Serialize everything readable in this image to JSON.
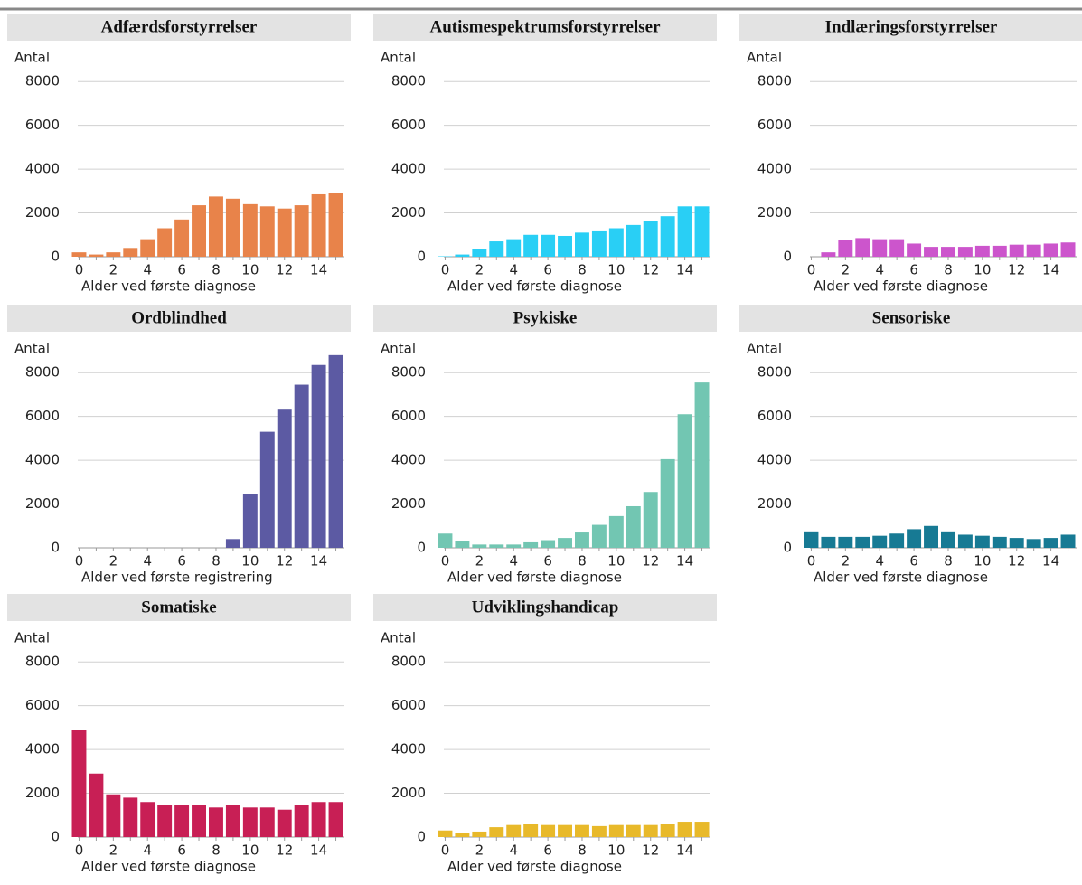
{
  "chart_data": [
    {
      "type": "bar",
      "title": "Adfærdsforstyrrelser",
      "y_label": "Antal",
      "x_label": "Alder ved første diagnose",
      "categories": [
        "0",
        null,
        "2",
        null,
        "4",
        null,
        "6",
        null,
        "8",
        null,
        "10",
        null,
        "12",
        null,
        "14",
        null
      ],
      "values": [
        200,
        100,
        200,
        400,
        800,
        1300,
        1700,
        2350,
        2750,
        2650,
        2400,
        2300,
        2200,
        2350,
        2850,
        2900
      ],
      "color": "#e8834a",
      "ylim": [
        0,
        9000
      ],
      "yticks": [
        0,
        2000,
        4000,
        6000,
        8000
      ],
      "grid": true
    },
    {
      "type": "bar",
      "title": "Autismespektrumsforstyrrelser",
      "y_label": "Antal",
      "x_label": "Alder ved første diagnose",
      "categories": [
        "0",
        null,
        "2",
        null,
        "4",
        null,
        "6",
        null,
        "8",
        null,
        "10",
        null,
        "12",
        null,
        "14",
        null
      ],
      "values": [
        20,
        100,
        350,
        700,
        800,
        1000,
        1000,
        950,
        1100,
        1200,
        1300,
        1450,
        1650,
        1850,
        2300,
        2300
      ],
      "color": "#29cff5",
      "ylim": [
        0,
        9000
      ],
      "yticks": [
        0,
        2000,
        4000,
        6000,
        8000
      ],
      "grid": true
    },
    {
      "type": "bar",
      "title": "Indlæringsforstyrrelser",
      "y_label": "Antal",
      "x_label": "Alder ved første diagnose",
      "categories": [
        "0",
        null,
        "2",
        null,
        "4",
        null,
        "6",
        null,
        "8",
        null,
        "10",
        null,
        "12",
        null,
        "14",
        null
      ],
      "values": [
        0,
        200,
        750,
        850,
        800,
        800,
        600,
        450,
        450,
        450,
        500,
        500,
        550,
        550,
        600,
        650
      ],
      "color": "#cc55cc",
      "ylim": [
        0,
        9000
      ],
      "yticks": [
        0,
        2000,
        4000,
        6000,
        8000
      ],
      "grid": true
    },
    {
      "type": "bar",
      "title": "Ordblindhed",
      "y_label": "Antal",
      "x_label": "Alder ved første registrering",
      "categories": [
        "0",
        null,
        "2",
        null,
        "4",
        null,
        "6",
        null,
        "8",
        null,
        "10",
        null,
        "12",
        null,
        "14",
        null
      ],
      "values": [
        0,
        0,
        0,
        0,
        0,
        0,
        0,
        0,
        0,
        400,
        2450,
        5300,
        6350,
        7450,
        8350,
        8800
      ],
      "color": "#5c5aa3",
      "ylim": [
        0,
        9000
      ],
      "yticks": [
        0,
        2000,
        4000,
        6000,
        8000
      ],
      "grid": true
    },
    {
      "type": "bar",
      "title": "Psykiske",
      "y_label": "Antal",
      "x_label": "Alder ved første diagnose",
      "categories": [
        "0",
        null,
        "2",
        null,
        "4",
        null,
        "6",
        null,
        "8",
        null,
        "10",
        null,
        "12",
        null,
        "14",
        null
      ],
      "values": [
        650,
        300,
        150,
        150,
        150,
        250,
        350,
        450,
        700,
        1050,
        1450,
        1900,
        2550,
        4050,
        6100,
        7550
      ],
      "color": "#72c6b2",
      "ylim": [
        0,
        9000
      ],
      "yticks": [
        0,
        2000,
        4000,
        6000,
        8000
      ],
      "grid": true
    },
    {
      "type": "bar",
      "title": "Sensoriske",
      "y_label": "Antal",
      "x_label": "Alder ved første diagnose",
      "categories": [
        "0",
        null,
        "2",
        null,
        "4",
        null,
        "6",
        null,
        "8",
        null,
        "10",
        null,
        "12",
        null,
        "14",
        null
      ],
      "values": [
        750,
        500,
        500,
        500,
        550,
        650,
        850,
        1000,
        750,
        600,
        550,
        500,
        450,
        400,
        450,
        600
      ],
      "color": "#177a94",
      "ylim": [
        0,
        9000
      ],
      "yticks": [
        0,
        2000,
        4000,
        6000,
        8000
      ],
      "grid": true
    },
    {
      "type": "bar",
      "title": "Somatiske",
      "y_label": "Antal",
      "x_label": "Alder ved første diagnose",
      "categories": [
        "0",
        null,
        "2",
        null,
        "4",
        null,
        "6",
        null,
        "8",
        null,
        "10",
        null,
        "12",
        null,
        "14",
        null
      ],
      "values": [
        4900,
        2900,
        1950,
        1800,
        1600,
        1450,
        1450,
        1450,
        1350,
        1450,
        1350,
        1350,
        1250,
        1450,
        1600,
        1600
      ],
      "color": "#c81f55",
      "ylim": [
        0,
        9000
      ],
      "yticks": [
        0,
        2000,
        4000,
        6000,
        8000
      ],
      "grid": true
    },
    {
      "type": "bar",
      "title": "Udviklingshandicap",
      "y_label": "Antal",
      "x_label": "Alder ved første diagnose",
      "categories": [
        "0",
        null,
        "2",
        null,
        "4",
        null,
        "6",
        null,
        "8",
        null,
        "10",
        null,
        "12",
        null,
        "14",
        null
      ],
      "values": [
        300,
        200,
        250,
        450,
        550,
        600,
        550,
        550,
        550,
        500,
        550,
        550,
        550,
        600,
        700,
        700
      ],
      "color": "#e8b92a",
      "ylim": [
        0,
        9000
      ],
      "yticks": [
        0,
        2000,
        4000,
        6000,
        8000
      ],
      "grid": true
    }
  ]
}
